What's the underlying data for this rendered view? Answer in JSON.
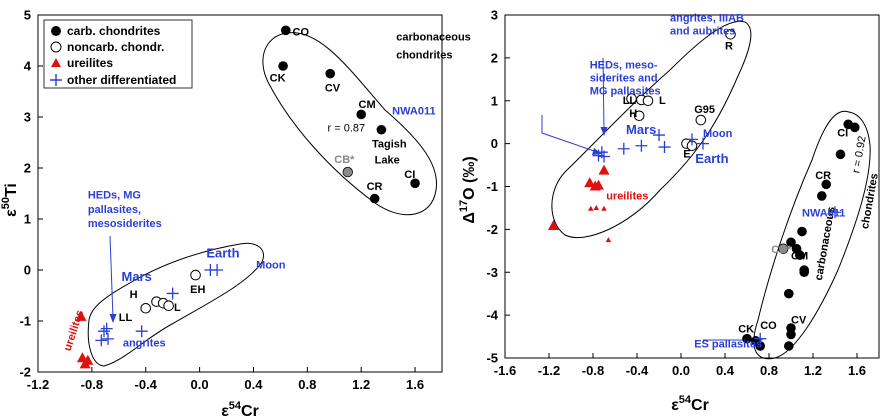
{
  "colors": {
    "blue": "#2b3fd6",
    "red": "#e01010",
    "black": "#000000",
    "gray": "#8a8a8a"
  },
  "chart_data": [
    {
      "type": "scatter",
      "xlabel_base": "ε",
      "xlabel_sup": "54",
      "xlabel_tail": "Cr",
      "ylabel_base": "ε",
      "ylabel_sup": "50",
      "ylabel_tail": "Ti",
      "xlim": [
        -1.2,
        1.8
      ],
      "ylim": [
        -2,
        5
      ],
      "xticks": [
        "-1.2",
        "-0.8",
        "-0.4",
        "0.0",
        "0.4",
        "0.8",
        "1.2",
        "1.6"
      ],
      "xtick_values": [
        -1.2,
        -0.8,
        -0.4,
        0.0,
        0.4,
        0.8,
        1.2,
        1.6
      ],
      "yticks": [
        "-2",
        "-1",
        "0",
        "1",
        "2",
        "3",
        "4",
        "5"
      ],
      "ytick_values": [
        -2,
        -1,
        0,
        1,
        2,
        3,
        4,
        5
      ],
      "legend": [
        {
          "marker": "filled-circle",
          "label": "carb. chondrites"
        },
        {
          "marker": "open-circle",
          "label": "noncarb. chondr."
        },
        {
          "marker": "red-triangle",
          "label": "ureilites"
        },
        {
          "marker": "blue-cross",
          "label": "other differentiated"
        }
      ],
      "series": [
        {
          "name": "carb. chondrites",
          "marker": "filled-circle",
          "points": [
            [
              0.64,
              4.7
            ],
            [
              0.62,
              4.0
            ],
            [
              0.97,
              3.85
            ],
            [
              1.2,
              3.05
            ],
            [
              1.35,
              2.75
            ],
            [
              1.6,
              1.7
            ],
            [
              1.3,
              1.4
            ]
          ]
        },
        {
          "name": "CB*",
          "marker": "gray-circle",
          "points": [
            [
              1.1,
              1.92
            ]
          ]
        },
        {
          "name": "noncarb. chondr.",
          "marker": "open-circle",
          "points": [
            [
              -0.03,
              -0.1
            ],
            [
              -0.4,
              -0.75
            ],
            [
              -0.32,
              -0.62
            ],
            [
              -0.27,
              -0.65
            ],
            [
              -0.23,
              -0.7
            ]
          ]
        },
        {
          "name": "ureilites",
          "marker": "red-triangle",
          "points": [
            [
              -0.88,
              -0.92
            ],
            [
              -0.87,
              -1.73
            ],
            [
              -0.85,
              -1.85
            ],
            [
              -0.83,
              -1.78
            ]
          ]
        },
        {
          "name": "other differentiated",
          "marker": "blue-cross",
          "points": [
            [
              -0.73,
              -1.38
            ],
            [
              -0.71,
              -1.2
            ],
            [
              -0.69,
              -1.15
            ],
            [
              -0.68,
              -1.35
            ],
            [
              -0.43,
              -1.2
            ],
            [
              -0.2,
              -0.46
            ],
            [
              0.08,
              0.0
            ],
            [
              0.13,
              0.0
            ]
          ]
        }
      ],
      "annotations": [
        {
          "text": "CO",
          "x": 0.69,
          "y": 4.6,
          "color": "black"
        },
        {
          "text": "CK",
          "x": 0.52,
          "y": 3.7,
          "color": "black"
        },
        {
          "text": "CV",
          "x": 0.93,
          "y": 3.5,
          "color": "black"
        },
        {
          "text": "CM",
          "x": 1.18,
          "y": 3.18,
          "color": "black"
        },
        {
          "text": "NWA011",
          "x": 1.43,
          "y": 3.05,
          "color": "blue"
        },
        {
          "text": "Tagish",
          "x": 1.28,
          "y": 2.4,
          "color": "black"
        },
        {
          "text": "Lake",
          "x": 1.3,
          "y": 2.09,
          "color": "black"
        },
        {
          "text": "CB*",
          "x": 1.0,
          "y": 2.1,
          "color": "gray"
        },
        {
          "text": "CI",
          "x": 1.52,
          "y": 1.8,
          "color": "black"
        },
        {
          "text": "CR",
          "x": 1.24,
          "y": 1.57,
          "color": "black"
        },
        {
          "text": "r = 0.87",
          "x": 0.95,
          "y": 2.72,
          "color": "black",
          "italic_r": true
        },
        {
          "text": "carbonaceous",
          "x": 1.46,
          "y": 4.5,
          "color": "black"
        },
        {
          "text": "chondrites",
          "x": 1.46,
          "y": 4.15,
          "color": "black"
        },
        {
          "text": "Earth",
          "x": 0.05,
          "y": 0.25,
          "color": "blue",
          "big": true
        },
        {
          "text": "Moon",
          "x": 0.42,
          "y": 0.03,
          "color": "blue"
        },
        {
          "text": "Mars",
          "x": -0.58,
          "y": -0.22,
          "color": "blue",
          "big": true
        },
        {
          "text": "EH",
          "x": -0.07,
          "y": -0.45,
          "color": "black"
        },
        {
          "text": "H",
          "x": -0.52,
          "y": -0.55,
          "color": "black"
        },
        {
          "text": "L",
          "x": -0.19,
          "y": -0.8,
          "color": "black"
        },
        {
          "text": "LL",
          "x": -0.6,
          "y": -1.0,
          "color": "black"
        },
        {
          "text": "angrites",
          "x": -0.57,
          "y": -1.5,
          "color": "blue"
        },
        {
          "text": "HEDs, MG",
          "x": -0.83,
          "y": 1.4,
          "color": "blue"
        },
        {
          "text": "pallasites,",
          "x": -0.83,
          "y": 1.12,
          "color": "blue"
        },
        {
          "text": "mesosiderites",
          "x": -0.83,
          "y": 0.84,
          "color": "blue"
        },
        {
          "text": "ureilites",
          "x": -0.96,
          "y": -1.6,
          "color": "red",
          "rotate": -72
        }
      ]
    },
    {
      "type": "scatter",
      "xlabel_base": "ε",
      "xlabel_sup": "54",
      "xlabel_tail": "Cr",
      "ylabel_base": "Δ",
      "ylabel_sup": "17",
      "ylabel_tail": "O (‰)",
      "xlim": [
        -1.6,
        1.8
      ],
      "ylim": [
        -5,
        3
      ],
      "xticks": [
        "-1.6",
        "-1.2",
        "-0.8",
        "-0.4",
        "0.0",
        "0.4",
        "0.8",
        "1.2",
        "1.6"
      ],
      "xtick_values": [
        -1.6,
        -1.2,
        -0.8,
        -0.4,
        0.0,
        0.4,
        0.8,
        1.2,
        1.6
      ],
      "yticks": [
        "-5",
        "-4",
        "-3",
        "-2",
        "-1",
        "0",
        "1",
        "2",
        "3"
      ],
      "ytick_values": [
        -5,
        -4,
        -3,
        -2,
        -1,
        0,
        1,
        2,
        3
      ],
      "series": [
        {
          "name": "carb. chondrites",
          "marker": "filled-circle",
          "points": [
            [
              1.52,
              0.45
            ],
            [
              1.58,
              0.38
            ],
            [
              1.45,
              -0.25
            ],
            [
              1.32,
              -0.95
            ],
            [
              1.28,
              -1.22
            ],
            [
              1.1,
              -2.05
            ],
            [
              1.0,
              -2.3
            ],
            [
              1.05,
              -2.45
            ],
            [
              1.08,
              -2.6
            ],
            [
              1.12,
              -2.95
            ],
            [
              1.12,
              -3.0
            ],
            [
              0.98,
              -3.5
            ],
            [
              1.0,
              -4.3
            ],
            [
              1.0,
              -4.45
            ],
            [
              0.98,
              -4.72
            ],
            [
              0.6,
              -4.55
            ],
            [
              0.68,
              -4.6
            ],
            [
              0.72,
              -4.72
            ]
          ]
        },
        {
          "name": "CB*",
          "marker": "gray-circle",
          "points": [
            [
              0.93,
              -2.45
            ]
          ]
        },
        {
          "name": "noncarb. chondr.",
          "marker": "open-circle",
          "points": [
            [
              0.45,
              2.55
            ],
            [
              -0.45,
              1.05
            ],
            [
              -0.36,
              1.02
            ],
            [
              -0.3,
              1.0
            ],
            [
              -0.38,
              0.65
            ],
            [
              0.18,
              0.55
            ],
            [
              0.05,
              0.0
            ],
            [
              0.1,
              -0.05
            ]
          ]
        },
        {
          "name": "ureilites-large",
          "marker": "red-triangle",
          "points": [
            [
              -1.16,
              -1.92
            ],
            [
              -0.83,
              -0.92
            ],
            [
              -0.78,
              -1.0
            ],
            [
              -0.75,
              -0.98
            ],
            [
              -0.7,
              -0.63
            ]
          ]
        },
        {
          "name": "ureilites-small",
          "marker": "red-triangle-small",
          "points": [
            [
              -0.82,
              -1.52
            ],
            [
              -0.77,
              -1.5
            ],
            [
              -0.7,
              -1.52
            ],
            [
              -0.66,
              -2.25
            ]
          ]
        },
        {
          "name": "other differentiated",
          "marker": "blue-cross",
          "points": [
            [
              -0.75,
              -0.28
            ],
            [
              -0.72,
              -0.2
            ],
            [
              -0.7,
              -0.3
            ],
            [
              -0.52,
              -0.12
            ],
            [
              -0.36,
              -0.05
            ],
            [
              -0.2,
              0.2
            ],
            [
              -0.15,
              -0.08
            ],
            [
              0.2,
              0.0
            ],
            [
              0.1,
              0.1
            ],
            [
              1.4,
              -1.6
            ],
            [
              0.72,
              -4.55
            ]
          ]
        }
      ],
      "annotations": [
        {
          "text": "angrites, IIIAB",
          "x": -0.1,
          "y": 2.85,
          "color": "blue"
        },
        {
          "text": "and aubrites",
          "x": -0.1,
          "y": 2.55,
          "color": "blue"
        },
        {
          "text": "HEDs, meso-",
          "x": -0.83,
          "y": 1.75,
          "color": "blue"
        },
        {
          "text": "siderites and",
          "x": -0.83,
          "y": 1.45,
          "color": "blue"
        },
        {
          "text": "MG pallasites",
          "x": -0.83,
          "y": 1.15,
          "color": "blue"
        },
        {
          "text": "R",
          "x": 0.4,
          "y": 2.2,
          "color": "black"
        },
        {
          "text": "LL",
          "x": -0.53,
          "y": 0.92,
          "color": "black"
        },
        {
          "text": "L",
          "x": -0.2,
          "y": 0.92,
          "color": "black"
        },
        {
          "text": "H",
          "x": -0.47,
          "y": 0.62,
          "color": "black"
        },
        {
          "text": "G95",
          "x": 0.12,
          "y": 0.72,
          "color": "black"
        },
        {
          "text": "Mars",
          "x": -0.5,
          "y": 0.22,
          "color": "blue",
          "big": true
        },
        {
          "text": "Moon",
          "x": 0.2,
          "y": 0.15,
          "color": "blue"
        },
        {
          "text": "E",
          "x": 0.02,
          "y": -0.32,
          "color": "black"
        },
        {
          "text": "Earth",
          "x": 0.13,
          "y": -0.45,
          "color": "blue",
          "big": true
        },
        {
          "text": "ureilites",
          "x": -0.68,
          "y": -1.3,
          "color": "red"
        },
        {
          "text": "CI",
          "x": 1.42,
          "y": 0.17,
          "color": "black"
        },
        {
          "text": "r = 0.92",
          "x": 1.62,
          "y": -0.7,
          "color": "black",
          "italic_r": true,
          "rotate": -80
        },
        {
          "text": "chondrites",
          "x": 1.7,
          "y": -2.0,
          "color": "black",
          "rotate": -80
        },
        {
          "text": "carbonaceous",
          "x": 1.28,
          "y": -3.2,
          "color": "black",
          "rotate": -80
        },
        {
          "text": "CR",
          "x": 1.22,
          "y": -0.82,
          "color": "black"
        },
        {
          "text": "NWA011",
          "x": 1.1,
          "y": -1.7,
          "color": "blue"
        },
        {
          "text": "CB*",
          "x": 0.82,
          "y": -2.55,
          "color": "gray"
        },
        {
          "text": "CM",
          "x": 1.0,
          "y": -2.7,
          "color": "black"
        },
        {
          "text": "CV",
          "x": 1.0,
          "y": -4.2,
          "color": "black"
        },
        {
          "text": "CK",
          "x": 0.52,
          "y": -4.4,
          "color": "black"
        },
        {
          "text": "CO",
          "x": 0.72,
          "y": -4.32,
          "color": "black"
        },
        {
          "text": "ES pallasites",
          "x": 0.12,
          "y": -4.75,
          "color": "blue"
        }
      ]
    }
  ]
}
